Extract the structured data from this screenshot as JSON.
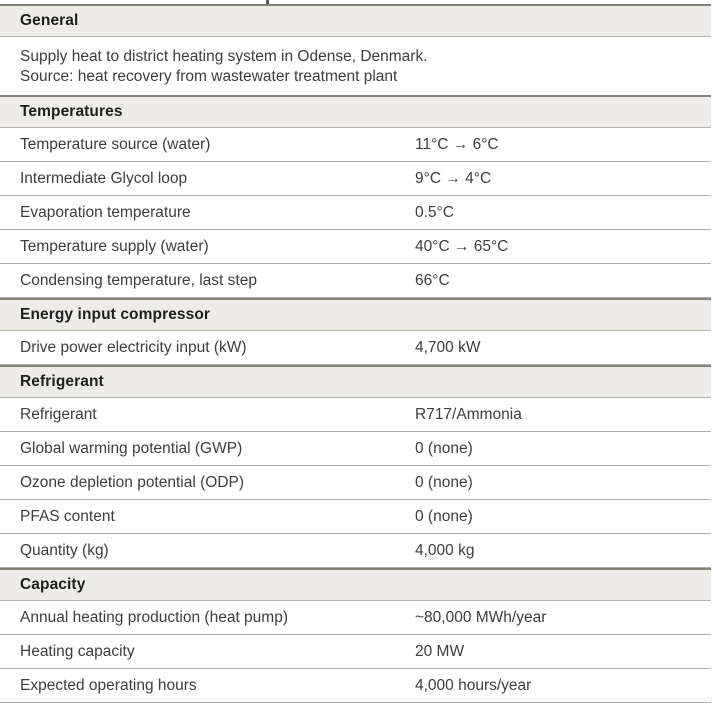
{
  "accent_colors": {
    "section_header_bg": "#edece9",
    "section_border": "#868379",
    "row_divider": "#b1afab",
    "header_text": "#1e1e1e",
    "body_text": "#3d3d3d"
  },
  "sections": [
    {
      "title": "General",
      "description_lines": [
        "Supply heat to district heating system in Odense, Denmark.",
        "Source: heat recovery from wastewater treatment plant"
      ],
      "rows": []
    },
    {
      "title": "Temperatures",
      "rows": [
        {
          "label": "Temperature source (water)",
          "value": "11°C → 6°C"
        },
        {
          "label": "Intermediate Glycol loop",
          "value": "9°C → 4°C"
        },
        {
          "label": "Evaporation temperature",
          "value": "0.5°C"
        },
        {
          "label": "Temperature supply (water)",
          "value": "40°C → 65°C"
        },
        {
          "label": "Condensing temperature, last step",
          "value": "66°C"
        }
      ]
    },
    {
      "title": "Energy input compressor",
      "rows": [
        {
          "label": "Drive power electricity input (kW)",
          "value": "4,700 kW"
        }
      ]
    },
    {
      "title": "Refrigerant",
      "rows": [
        {
          "label": "Refrigerant",
          "value": "R717/Ammonia"
        },
        {
          "label": "Global warming potential (GWP)",
          "value": "0 (none)"
        },
        {
          "label": "Ozone depletion potential (ODP)",
          "value": "0 (none)"
        },
        {
          "label": "PFAS content",
          "value": "0 (none)"
        },
        {
          "label": "Quantity (kg)",
          "value": "4,000 kg"
        }
      ]
    },
    {
      "title": "Capacity",
      "rows": [
        {
          "label": "Annual heating production (heat pump)",
          "value": "~80,000 MWh/year"
        },
        {
          "label": "Heating capacity",
          "value": "20 MW"
        },
        {
          "label": "Expected operating hours",
          "value": "4,000 hours/year"
        }
      ]
    }
  ]
}
